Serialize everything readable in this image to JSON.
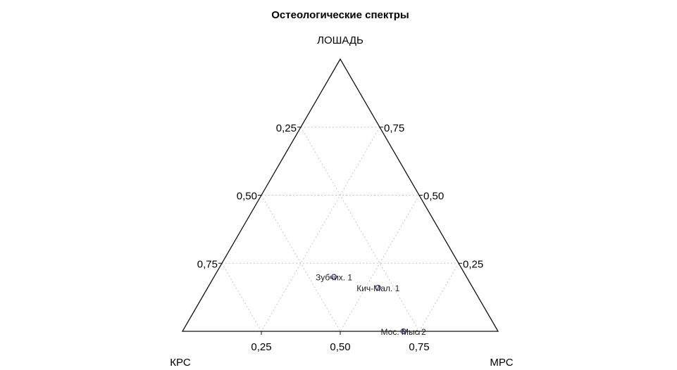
{
  "chart_data": {
    "type": "scatter",
    "subtype": "ternary",
    "title": "Остеологические спектры",
    "vertices": {
      "top": "ЛОШАДЬ",
      "left": "КРС",
      "right": "МРС"
    },
    "components": [
      "КРС",
      "МРС",
      "ЛОШАДЬ"
    ],
    "grid": true,
    "grid_lines": [
      0.25,
      0.5,
      0.75
    ],
    "tick_labels": [
      "0,25",
      "0,50",
      "0,75"
    ],
    "point_color": "#3a2f8f",
    "frame_color": "#111111",
    "grid_color": "#c8c8c8",
    "points": [
      {
        "label": "Зубчих. 1",
        "KRS": 0.42,
        "MRS": 0.38,
        "LOSHAD": 0.2
      },
      {
        "label": "Кич-Мал. 1",
        "KRS": 0.3,
        "MRS": 0.54,
        "LOSHAD": 0.16
      },
      {
        "label": "Мос. Мыс 2",
        "KRS": 0.3,
        "MRS": 0.7,
        "LOSHAD": 0.0
      }
    ]
  }
}
